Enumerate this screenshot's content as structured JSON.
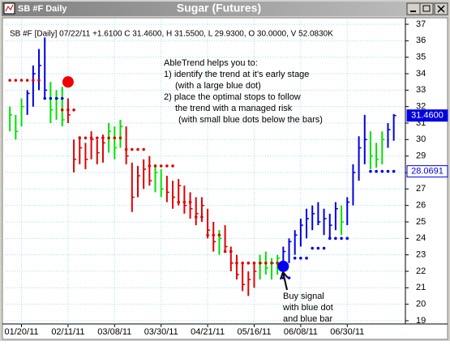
{
  "window": {
    "title": "SB #F Daily"
  },
  "chart_data": {
    "type": "ohlc",
    "title": "Sugar (Futures)",
    "info": "SB #F [Daily] 07/22/11  +1.6100 C 31.4600, H 31.5500, L 29.9300, O 30.0000, V 52.0830K",
    "annotation": [
      "AbleTrend helps you to:",
      "1) identify the trend at it's early stage",
      "(with a large blue dot)",
      "2) place the optimal stops to follow",
      "the trend with a managed risk",
      "(with small blue dots below the bars)"
    ],
    "buy_note": [
      "Buy signal",
      "with blue dot",
      "and blue bar"
    ],
    "ylim": [
      19,
      37
    ],
    "yticks": [
      19,
      20,
      21,
      22,
      23,
      24,
      25,
      26,
      27,
      28,
      29,
      30,
      31,
      32,
      33,
      34,
      35,
      36,
      37
    ],
    "xlim": [
      -1,
      68
    ],
    "xticks": [
      {
        "value": 2,
        "label": "01/20/11"
      },
      {
        "value": 10,
        "label": "02/11/11"
      },
      {
        "value": 18,
        "label": "03/08/11"
      },
      {
        "value": 26,
        "label": "03/30/11"
      },
      {
        "value": 34,
        "label": "04/21/11"
      },
      {
        "value": 42,
        "label": "05/16/11"
      },
      {
        "value": 50,
        "label": "06/08/11"
      },
      {
        "value": 58,
        "label": "06/30/11"
      }
    ],
    "grid": true,
    "high": [
      32.0,
      31.5,
      32.5,
      33.0,
      34.5,
      35.5,
      36.2,
      33.5,
      33.0,
      33.2,
      32.5,
      30.0,
      30.2,
      29.8,
      30.5,
      30.0,
      30.3,
      31.0,
      30.8,
      31.2,
      30.8,
      28.6,
      28.4,
      28.8,
      29.0,
      28.5,
      28.2,
      27.8,
      27.5,
      27.6,
      27.2,
      26.8,
      26.5,
      26.5,
      25.8,
      25.0,
      24.5,
      24.8,
      23.5,
      23.0,
      22.5,
      22.0,
      22.5,
      23.0,
      23.2,
      22.8,
      23.0,
      23.5,
      24.0,
      24.5,
      25.2,
      25.8,
      26.0,
      26.2,
      25.8,
      25.5,
      26.2,
      26.0,
      26.5,
      28.5,
      30.2,
      31.5,
      30.5,
      29.8,
      30.5,
      31.0,
      31.55
    ],
    "low": [
      30.5,
      30.0,
      30.8,
      31.5,
      32.0,
      33.0,
      32.5,
      31.0,
      31.2,
      30.8,
      31.0,
      28.0,
      28.5,
      28.2,
      28.8,
      28.5,
      28.6,
      29.2,
      28.8,
      29.5,
      28.5,
      25.6,
      26.5,
      27.0,
      27.2,
      26.8,
      26.5,
      26.2,
      25.8,
      26.0,
      25.5,
      25.2,
      24.8,
      25.0,
      24.0,
      23.2,
      23.0,
      23.2,
      22.0,
      21.5,
      20.8,
      20.5,
      21.0,
      21.5,
      21.8,
      21.5,
      21.8,
      22.0,
      22.5,
      23.0,
      23.5,
      24.0,
      24.5,
      24.8,
      24.2,
      24.0,
      24.5,
      24.2,
      24.8,
      26.0,
      27.5,
      28.5,
      28.2,
      28.3,
      28.5,
      29.5,
      29.93
    ],
    "close": [
      31.5,
      30.5,
      32.0,
      32.8,
      34.0,
      34.5,
      33.0,
      31.8,
      32.5,
      31.2,
      31.5,
      28.8,
      29.5,
      28.8,
      30.0,
      29.2,
      29.8,
      30.5,
      29.5,
      30.8,
      29.0,
      26.5,
      27.8,
      28.2,
      27.5,
      28.0,
      27.0,
      26.8,
      26.5,
      27.2,
      26.0,
      25.8,
      25.5,
      26.0,
      24.5,
      23.8,
      24.0,
      23.5,
      22.5,
      21.8,
      21.2,
      21.5,
      22.0,
      22.5,
      22.2,
      22.5,
      22.8,
      23.2,
      23.8,
      24.2,
      24.8,
      25.2,
      25.5,
      25.0,
      25.2,
      24.8,
      25.8,
      25.0,
      26.2,
      28.0,
      29.5,
      30.0,
      29.0,
      28.8,
      30.0,
      30.6,
      31.46
    ],
    "bar_colors": [
      "#00e000",
      "#00e000",
      "#00e000",
      "#0000e0",
      "#0000e0",
      "#0000e0",
      "#0000e0",
      "#00e000",
      "#00e000",
      "#00e000",
      "#e00000",
      "#e00000",
      "#e00000",
      "#e00000",
      "#e00000",
      "#e00000",
      "#e00000",
      "#00e000",
      "#00e000",
      "#00e000",
      "#e00000",
      "#e00000",
      "#e00000",
      "#e00000",
      "#e00000",
      "#00e000",
      "#00e000",
      "#e00000",
      "#e00000",
      "#e00000",
      "#e00000",
      "#e00000",
      "#e00000",
      "#e00000",
      "#e00000",
      "#e00000",
      "#00e000",
      "#e00000",
      "#e00000",
      "#e00000",
      "#e00000",
      "#e00000",
      "#e00000",
      "#00e000",
      "#00e000",
      "#00e000",
      "#00e000",
      "#0000e0",
      "#0000e0",
      "#0000e0",
      "#0000e0",
      "#0000e0",
      "#0000e0",
      "#0000e0",
      "#0000e0",
      "#0000e0",
      "#0000e0",
      "#00e000",
      "#0000e0",
      "#0000e0",
      "#0000e0",
      "#0000e0",
      "#00e000",
      "#00e000",
      "#00e000",
      "#0000e0",
      "#0000e0"
    ],
    "stop_series": [
      {
        "color": "#e00000",
        "values": [
          33.6,
          33.6,
          33.6,
          33.6,
          33.6,
          33.6,
          null,
          null,
          null,
          31.8,
          31.8,
          31.8,
          30.1,
          30.1,
          30.1,
          30.1,
          30.1,
          30.1,
          30.1,
          30.1,
          29.4,
          29.4,
          29.4,
          29.4,
          28.4,
          28.4,
          28.4,
          28.4,
          28.4,
          26.2,
          26.2,
          26.2,
          25.3,
          25.3,
          24.2,
          24.2,
          24.2,
          23.2,
          23.2,
          22.5,
          22.5,
          22.5,
          22.5,
          22.5,
          22.5,
          22.5,
          22.5,
          null,
          null,
          null,
          null,
          null,
          null,
          null,
          null,
          null,
          null,
          null,
          null,
          null,
          null,
          null,
          null,
          null,
          null,
          null,
          null
        ]
      },
      {
        "color": "#0000e0",
        "values": [
          null,
          null,
          null,
          null,
          null,
          null,
          32.5,
          32.5,
          32.5,
          32.5,
          null,
          null,
          null,
          null,
          null,
          null,
          null,
          null,
          null,
          null,
          null,
          null,
          null,
          null,
          null,
          null,
          null,
          null,
          null,
          null,
          null,
          null,
          null,
          null,
          null,
          null,
          null,
          null,
          null,
          null,
          null,
          null,
          null,
          null,
          null,
          null,
          null,
          21.6,
          21.6,
          22.8,
          22.8,
          22.8,
          23.4,
          23.4,
          23.4,
          24.0,
          24.0,
          24.0,
          24.0,
          null,
          null,
          null,
          28.0691,
          28.0691,
          28.0691,
          28.0691,
          28.0691
        ]
      }
    ],
    "signals": [
      {
        "x": 10,
        "value": 33.5,
        "color": "#f00000"
      },
      {
        "x": 47,
        "value": 22.3,
        "color": "#0000f0"
      }
    ],
    "price_labels": [
      {
        "value": 31.46,
        "label": "31.4600",
        "color": "#0000e0"
      },
      {
        "value": 28.0691,
        "label": "28.0691",
        "color": "#0000e0"
      }
    ]
  }
}
